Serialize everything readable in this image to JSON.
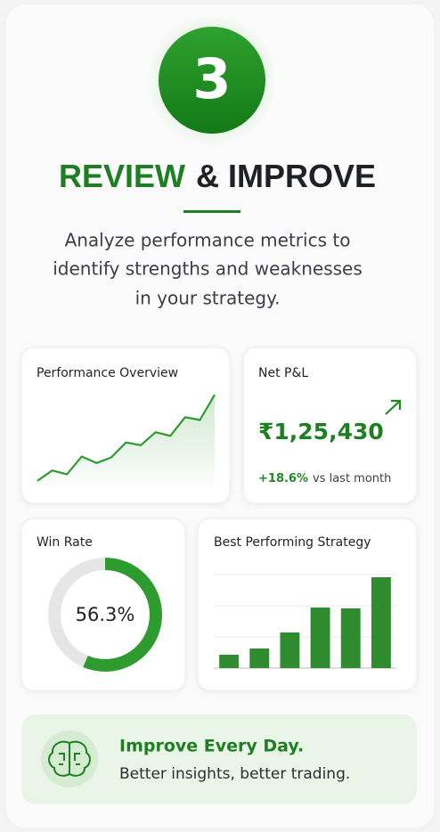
{
  "step": {
    "number": "3"
  },
  "title": {
    "highlight": "REVIEW",
    "rest": "& IMPROVE"
  },
  "description": [
    "Analyze performance metrics to",
    "identify strengths and weaknesses",
    "in your strategy."
  ],
  "performance_overview": {
    "title": "Performance Overview",
    "chart": {
      "type": "line",
      "color": "#2e9b2e",
      "ylim": [
        0,
        100
      ],
      "values": [
        5,
        16,
        12,
        31,
        24,
        30,
        46,
        43,
        57,
        53,
        73,
        70,
        97
      ]
    }
  },
  "net_pnl": {
    "title": "Net P&L",
    "amount": "₹1,25,430",
    "change": "+18.6%",
    "change_note": "vs last month"
  },
  "win_rate": {
    "title": "Win Rate",
    "chart": {
      "type": "donut",
      "value": 56.3,
      "value_label": "56.3%",
      "max": 100,
      "color": "#2e9b2e",
      "track_color": "#e6e6e6"
    }
  },
  "best_strategy": {
    "title": "Best Performing Strategy",
    "chart": {
      "type": "bar",
      "color": "#2e8b2e",
      "ylim": [
        0,
        110
      ],
      "yticks": [
        0,
        35,
        70,
        105
      ],
      "grid": true,
      "values": [
        15,
        22,
        40,
        68,
        67,
        102
      ]
    }
  },
  "banner": {
    "title": "Improve Every Day.",
    "subtitle": "Better insights, better trading."
  }
}
